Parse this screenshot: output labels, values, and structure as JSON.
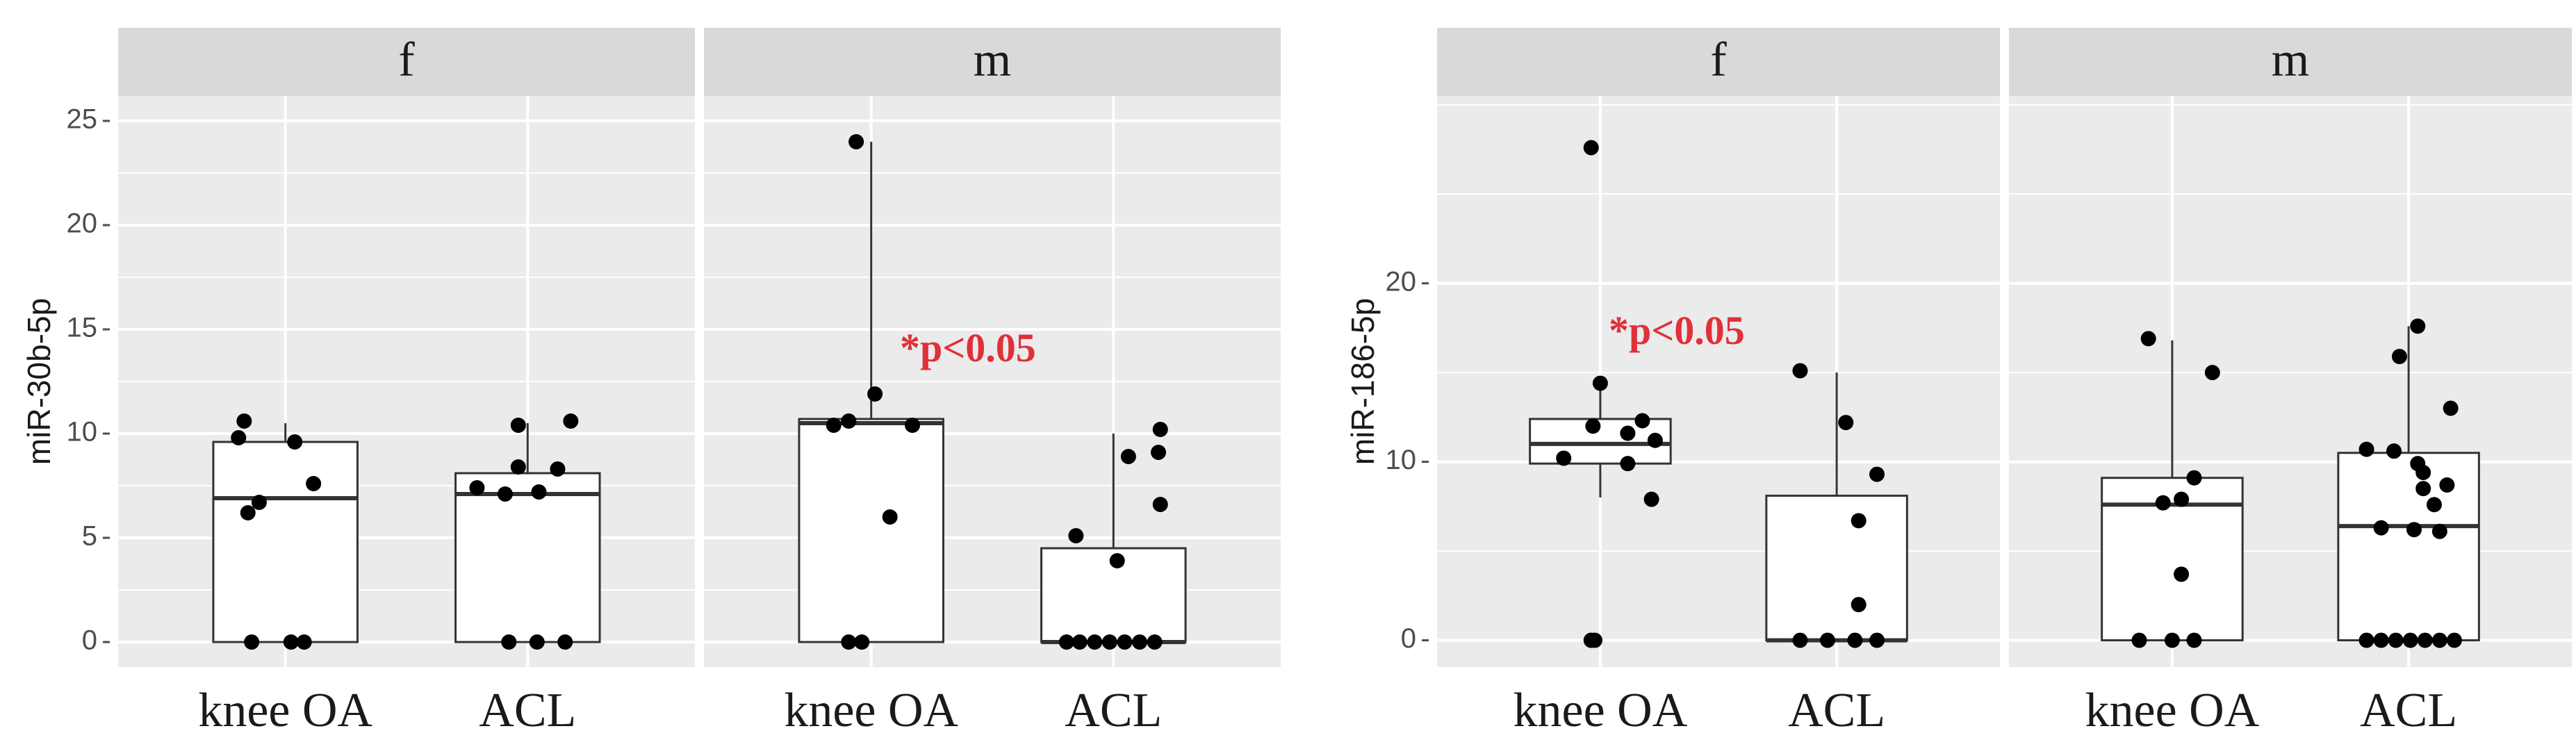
{
  "chart_data": [
    {
      "type": "boxplot",
      "ylabel": "miR-30b-5p",
      "xlabel": "",
      "ylim": [
        -1.2,
        26.2
      ],
      "yticks": [
        0,
        5,
        10,
        15,
        20,
        25
      ],
      "tick_labels": [
        "0",
        "5",
        "10",
        "15",
        "20",
        "25"
      ],
      "grid": true,
      "categories": [
        "knee OA",
        "ACL"
      ],
      "facets": [
        {
          "strip": "f",
          "boxes": [
            {
              "category": "knee OA",
              "q1": 0,
              "median": 6.9,
              "q3": 9.6,
              "whisker_low": 0,
              "whisker_high": 10.5,
              "points": [
                [
                  -0.22,
                  10.6
                ],
                [
                  -0.25,
                  9.8
                ],
                [
                  0.05,
                  9.6
                ],
                [
                  -0.2,
                  6.2
                ],
                [
                  -0.14,
                  6.7
                ],
                [
                  0.15,
                  7.6
                ],
                [
                  -0.18,
                  0
                ],
                [
                  0.03,
                  0
                ],
                [
                  0.1,
                  0
                ]
              ]
            },
            {
              "category": "ACL",
              "q1": 0,
              "median": 7.1,
              "q3": 8.1,
              "whisker_low": 0,
              "whisker_high": 10.5,
              "points": [
                [
                  -0.05,
                  10.4
                ],
                [
                  0.23,
                  10.6
                ],
                [
                  -0.05,
                  8.4
                ],
                [
                  0.16,
                  8.3
                ],
                [
                  -0.27,
                  7.4
                ],
                [
                  -0.12,
                  7.1
                ],
                [
                  0.06,
                  7.2
                ],
                [
                  -0.1,
                  0
                ],
                [
                  0.05,
                  0
                ],
                [
                  0.2,
                  0
                ]
              ]
            }
          ],
          "annotation": ""
        },
        {
          "strip": "m",
          "boxes": [
            {
              "category": "knee OA",
              "q1": 0,
              "median": 10.5,
              "q3": 10.7,
              "whisker_low": 0,
              "whisker_high": 24,
              "points": [
                [
                  -0.08,
                  24
                ],
                [
                  0.02,
                  11.9
                ],
                [
                  -0.12,
                  10.6
                ],
                [
                  -0.2,
                  10.4
                ],
                [
                  0.22,
                  10.4
                ],
                [
                  0.1,
                  6
                ],
                [
                  -0.12,
                  0
                ],
                [
                  -0.05,
                  0
                ]
              ]
            },
            {
              "category": "ACL",
              "q1": 0,
              "median": 0,
              "q3": 4.5,
              "whisker_low": 0,
              "whisker_high": 10,
              "points": [
                [
                  0.25,
                  10.2
                ],
                [
                  0.24,
                  9.1
                ],
                [
                  0.08,
                  8.9
                ],
                [
                  0.25,
                  6.6
                ],
                [
                  -0.2,
                  5.1
                ],
                [
                  0.02,
                  3.9
                ],
                [
                  -0.25,
                  0
                ],
                [
                  -0.18,
                  0
                ],
                [
                  -0.1,
                  0
                ],
                [
                  -0.02,
                  0
                ],
                [
                  0.06,
                  0
                ],
                [
                  0.14,
                  0
                ],
                [
                  0.22,
                  0
                ]
              ]
            }
          ],
          "annotation": "*p<0.05"
        }
      ]
    },
    {
      "type": "boxplot",
      "ylabel": "miR-186-5p",
      "xlabel": "",
      "ylim": [
        -1.5,
        30.5
      ],
      "yticks": [
        0,
        10,
        20
      ],
      "tick_labels": [
        "0",
        "10",
        "20"
      ],
      "grid": true,
      "categories": [
        "knee OA",
        "ACL"
      ],
      "facets": [
        {
          "strip": "f",
          "boxes": [
            {
              "category": "knee OA",
              "q1": 9.9,
              "median": 11,
              "q3": 12.4,
              "whisker_low": 8,
              "whisker_high": 14.5,
              "points": [
                [
                  -0.05,
                  27.6
                ],
                [
                  0.0,
                  14.4
                ],
                [
                  -0.04,
                  12.0
                ],
                [
                  0.23,
                  12.3
                ],
                [
                  0.15,
                  11.6
                ],
                [
                  0.3,
                  11.2
                ],
                [
                  -0.2,
                  10.2
                ],
                [
                  0.15,
                  9.9
                ],
                [
                  0.28,
                  7.9
                ],
                [
                  -0.05,
                  0
                ],
                [
                  -0.03,
                  0
                ]
              ]
            },
            {
              "category": "ACL",
              "q1": 0,
              "median": 0,
              "q3": 8.1,
              "whisker_low": 0,
              "whisker_high": 15,
              "points": [
                [
                  -0.2,
                  15.1
                ],
                [
                  0.05,
                  12.2
                ],
                [
                  0.22,
                  9.3
                ],
                [
                  0.12,
                  6.7
                ],
                [
                  0.12,
                  2
                ],
                [
                  -0.2,
                  0
                ],
                [
                  -0.05,
                  0
                ],
                [
                  0.1,
                  0
                ],
                [
                  0.22,
                  0
                ]
              ]
            }
          ],
          "annotation": "*p<0.05"
        },
        {
          "strip": "m",
          "boxes": [
            {
              "category": "knee OA",
              "q1": 0,
              "median": 7.6,
              "q3": 9.1,
              "whisker_low": 0,
              "whisker_high": 16.8,
              "points": [
                [
                  -0.13,
                  16.9
                ],
                [
                  0.22,
                  15
                ],
                [
                  0.12,
                  9.1
                ],
                [
                  0.05,
                  7.9
                ],
                [
                  -0.05,
                  7.7
                ],
                [
                  0.05,
                  3.7
                ],
                [
                  -0.18,
                  0
                ],
                [
                  0.0,
                  0
                ],
                [
                  0.12,
                  0
                ]
              ]
            },
            {
              "category": "ACL",
              "q1": 0,
              "median": 6.4,
              "q3": 10.5,
              "whisker_low": 0,
              "whisker_high": 17.6,
              "points": [
                [
                  0.05,
                  17.6
                ],
                [
                  -0.05,
                  15.9
                ],
                [
                  0.23,
                  13
                ],
                [
                  -0.23,
                  10.7
                ],
                [
                  -0.08,
                  10.6
                ],
                [
                  0.05,
                  9.9
                ],
                [
                  0.08,
                  9.4
                ],
                [
                  0.08,
                  8.5
                ],
                [
                  0.21,
                  8.7
                ],
                [
                  0.14,
                  7.6
                ],
                [
                  -0.15,
                  6.3
                ],
                [
                  0.03,
                  6.2
                ],
                [
                  0.17,
                  6.1
                ],
                [
                  -0.23,
                  0
                ],
                [
                  -0.15,
                  0
                ],
                [
                  -0.07,
                  0
                ],
                [
                  0.01,
                  0
                ],
                [
                  0.09,
                  0
                ],
                [
                  0.17,
                  0
                ],
                [
                  0.25,
                  0
                ]
              ]
            }
          ],
          "annotation": ""
        }
      ]
    }
  ],
  "colors": {
    "panel_bg": "#ebebeb",
    "strip_bg": "#d9d9d9",
    "grid": "#ffffff",
    "box_fill": "#ffffff",
    "box_stroke": "#333333",
    "point": "#000000",
    "annotation": "#e0303a",
    "tick": "#4d4d4d"
  }
}
